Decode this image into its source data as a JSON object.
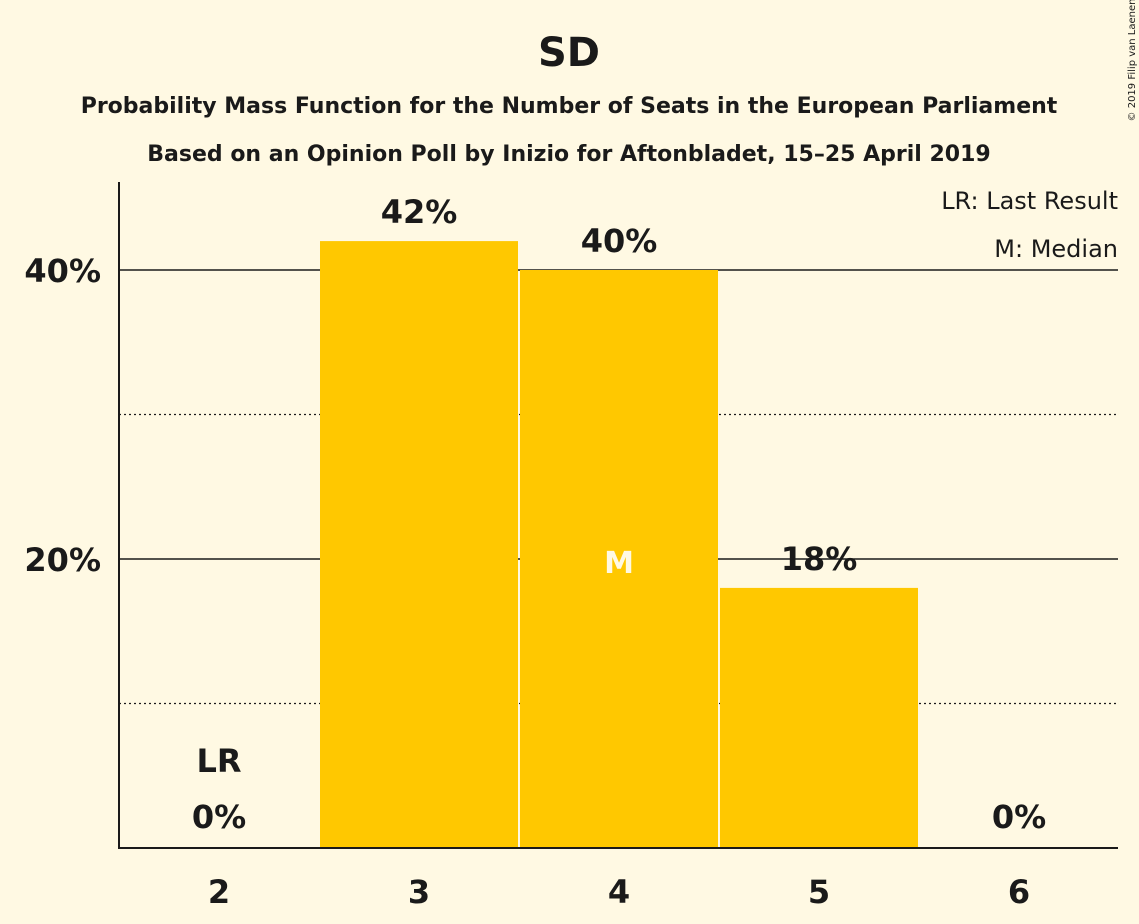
{
  "chart_data": {
    "type": "bar",
    "title": "SD",
    "subtitle_lines": [
      "Probability Mass Function for the Number of Seats in the European Parliament",
      "Based on an Opinion Poll by Inizio for Aftonbladet, 15–25 April 2019"
    ],
    "categories": [
      "2",
      "3",
      "4",
      "5",
      "6"
    ],
    "values": [
      0,
      42,
      40,
      18,
      0
    ],
    "value_labels": [
      "0%",
      "42%",
      "40%",
      "18%",
      "0%"
    ],
    "ylim": [
      0,
      46
    ],
    "yticks": [
      {
        "value": 20,
        "label": "20%"
      },
      {
        "value": 40,
        "label": "40%"
      }
    ],
    "minor_grid": [
      10,
      30
    ],
    "last_result": {
      "category": "2",
      "label": "LR"
    },
    "median": {
      "category": "4",
      "label": "M"
    },
    "legend": {
      "placement": "top-right",
      "items": [
        "LR: Last Result",
        "M: Median"
      ]
    },
    "bar_color": "#FFC800",
    "copyright": "© 2019 Filip van Laenen"
  }
}
